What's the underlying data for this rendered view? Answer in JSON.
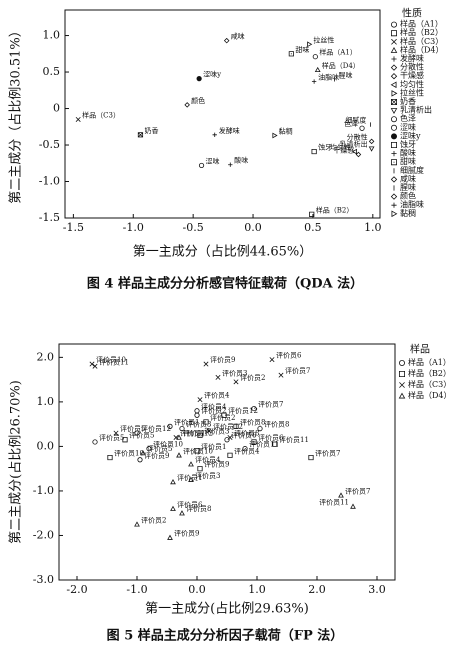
{
  "chart_data": [
    {
      "type": "scatter",
      "x_label": "第一主成分（占比例44.65%）",
      "y_label": "第二主成分（占比例30.51%）",
      "caption": "图 4  样品主成分分析感官特征载荷（QDA 法）",
      "legend_title": "性质",
      "xlim": [
        -1.57,
        1.06
      ],
      "ylim": [
        -1.5,
        1.35
      ],
      "xticks": [
        {
          "value": -1.5,
          "label": "-1.5"
        },
        {
          "value": -1.0,
          "label": "-1.0"
        },
        {
          "value": -0.5,
          "label": "-0.5"
        },
        {
          "value": 0,
          "label": "0.0"
        },
        {
          "value": 0.5,
          "label": "0.5"
        },
        {
          "value": 1.0,
          "label": "1.0"
        }
      ],
      "yticks": [
        {
          "value": 1.0,
          "label": "1.0"
        },
        0.5,
        0,
        -0.5,
        {
          "value": -1.0,
          "label": "-1.0"
        },
        -1.5
      ],
      "series": [
        {
          "name": "样品（A1）",
          "marker": "circle",
          "color": "#111",
          "x": [
            0.52
          ],
          "y": [
            0.71
          ]
        },
        {
          "name": "样品（B2）",
          "marker": "square",
          "color": "#111",
          "x": [
            0.49
          ],
          "y": [
            -1.45
          ]
        },
        {
          "name": "样品（C3）",
          "marker": "x",
          "color": "#111",
          "x": [
            -1.46
          ],
          "y": [
            -0.15
          ]
        },
        {
          "name": "样品（D4）",
          "marker": "triangle",
          "color": "#111",
          "x": [
            0.54
          ],
          "y": [
            0.53
          ]
        },
        {
          "name": "发酵味",
          "marker": "plus",
          "color": "#111",
          "x": [
            -0.32
          ],
          "y": [
            -0.36
          ]
        },
        {
          "name": "分散性",
          "marker": "diamond",
          "color": "#111",
          "x": [
            0.99
          ],
          "y": [
            -0.45
          ]
        },
        {
          "name": "干燥感",
          "marker": "diamond",
          "color": "#111",
          "x": [
            0.88
          ],
          "y": [
            -0.63
          ]
        },
        {
          "name": "均匀性",
          "marker": "triangle-left",
          "color": "#111",
          "x": [
            0.85
          ],
          "y": [
            -0.59
          ]
        },
        {
          "name": "拉丝性",
          "marker": "triangle-right",
          "color": "#111",
          "x": [
            0.47
          ],
          "y": [
            0.88
          ]
        },
        {
          "name": "奶香",
          "marker": "square-x",
          "color": "#111",
          "x": [
            -0.94
          ],
          "y": [
            -0.36
          ]
        },
        {
          "name": "乳清析出",
          "marker": "triangle-down",
          "color": "#111",
          "x": [
            0.99
          ],
          "y": [
            -0.55
          ]
        },
        {
          "name": "色泽",
          "marker": "circle",
          "color": "#111",
          "x": [
            0.91
          ],
          "y": [
            -0.27
          ]
        },
        {
          "name": "涩味",
          "marker": "circle",
          "color": "#111",
          "x": [
            -0.43
          ],
          "y": [
            -0.78
          ]
        },
        {
          "name": "涩味y",
          "marker": "dot",
          "color": "#111",
          "x": [
            -0.45
          ],
          "y": [
            0.41
          ]
        },
        {
          "name": "蚀牙",
          "marker": "square",
          "color": "#111",
          "x": [
            0.51
          ],
          "y": [
            -0.59
          ]
        },
        {
          "name": "酸味",
          "marker": "plus",
          "color": "#111",
          "x": [
            -0.19
          ],
          "y": [
            -0.77
          ]
        },
        {
          "name": "甜味",
          "marker": "square-dot",
          "color": "#111",
          "x": [
            0.32
          ],
          "y": [
            0.75
          ]
        },
        {
          "name": "细腻度",
          "marker": "tick",
          "color": "#111",
          "x": [
            0.98
          ],
          "y": [
            -0.22
          ]
        },
        {
          "name": "咸味",
          "marker": "diamond",
          "color": "#111",
          "x": [
            -0.22
          ],
          "y": [
            0.93
          ]
        },
        {
          "name": "腥味",
          "marker": "tick",
          "color": "#111",
          "x": [
            0.68
          ],
          "y": [
            0.4
          ]
        },
        {
          "name": "颜色",
          "marker": "diamond",
          "color": "#111",
          "x": [
            -0.55
          ],
          "y": [
            0.05
          ]
        },
        {
          "name": "油脂味",
          "marker": "plus",
          "color": "#111",
          "x": [
            0.51
          ],
          "y": [
            0.37
          ]
        },
        {
          "name": "黏稠",
          "marker": "triangle-right",
          "color": "#111",
          "x": [
            0.18
          ],
          "y": [
            -0.37
          ]
        }
      ]
    },
    {
      "type": "scatter",
      "x_label": "第一主成分(占比例29.63%)",
      "y_label": "第二主成分(占比例26.70%)",
      "caption": "图 5  样品主成分分析因子载荷（FP 法）",
      "legend_title": "样品",
      "xlim": [
        -2.3,
        3.3
      ],
      "ylim": [
        -3.0,
        2.3
      ],
      "xticks": [
        {
          "value": -2,
          "label": "-2.0"
        },
        {
          "value": -1,
          "label": "-1.0"
        },
        {
          "value": 0,
          "label": "0.0"
        },
        {
          "value": 1,
          "label": "1.0"
        },
        {
          "value": 2,
          "label": "2.0"
        },
        {
          "value": 3,
          "label": "3.0"
        }
      ],
      "yticks": [
        {
          "value": 2,
          "label": "2.0"
        },
        {
          "value": 1,
          "label": "1.0"
        },
        {
          "value": 0,
          "label": "0.0"
        },
        {
          "value": -1,
          "label": "-1.0"
        },
        {
          "value": -2,
          "label": "-2.0"
        },
        {
          "value": -3,
          "label": "-3.0"
        }
      ],
      "point_labels": [
        "评价员1",
        "评价员2",
        "评价员3",
        "评价员4",
        "评价员5",
        "评价员6",
        "评价员7",
        "评价员8",
        "评价员9",
        "评价员10",
        "评价员11",
        "评价员12"
      ],
      "series": [
        {
          "name": "样品（A1）",
          "marker": "circle",
          "color": "#111",
          "x": [
            -0.45,
            0.0,
            -0.25,
            0.0,
            -1.7,
            0.5,
            0.95,
            1.05,
            -0.95,
            -0.8,
            0.8,
            -1.0
          ],
          "y": [
            0.45,
            0.7,
            0.4,
            0.8,
            0.1,
            0.15,
            0.85,
            0.4,
            -0.3,
            -0.05,
            -0.05,
            0.3
          ]
        },
        {
          "name": "样品（B2）",
          "marker": "square",
          "color": "#111",
          "x": [
            0.0,
            0.15,
            0.05,
            0.55,
            -1.2,
            0.95,
            1.9,
            0.65,
            0.05,
            -1.45,
            1.3,
            0.45
          ],
          "y": [
            -0.1,
            0.55,
            0.25,
            -0.2,
            0.15,
            0.1,
            -0.25,
            0.45,
            -0.5,
            -0.25,
            0.05,
            0.7
          ]
        },
        {
          "name": "样品（C3）",
          "marker": "x",
          "color": "#111",
          "x": [
            -0.35,
            0.65,
            0.35,
            0.05,
            -1.35,
            1.25,
            1.4,
            0.55,
            0.15,
            -1.75,
            -1.7,
            0.2
          ],
          "y": [
            0.2,
            1.45,
            1.55,
            1.05,
            0.3,
            1.95,
            1.6,
            0.2,
            1.85,
            1.85,
            1.8,
            0.35
          ]
        },
        {
          "name": "样品（D4）",
          "marker": "triangle",
          "color": "#111",
          "x": [
            -0.4,
            -1.0,
            -0.1,
            -0.1,
            -0.9,
            -0.4,
            2.4,
            -0.25,
            -0.45,
            -0.3,
            2.6,
            -0.3
          ],
          "y": [
            -0.8,
            -1.75,
            -0.75,
            -0.4,
            -0.15,
            -1.4,
            -1.1,
            -1.5,
            -2.05,
            -0.2,
            -1.35,
            0.2
          ]
        }
      ]
    }
  ]
}
